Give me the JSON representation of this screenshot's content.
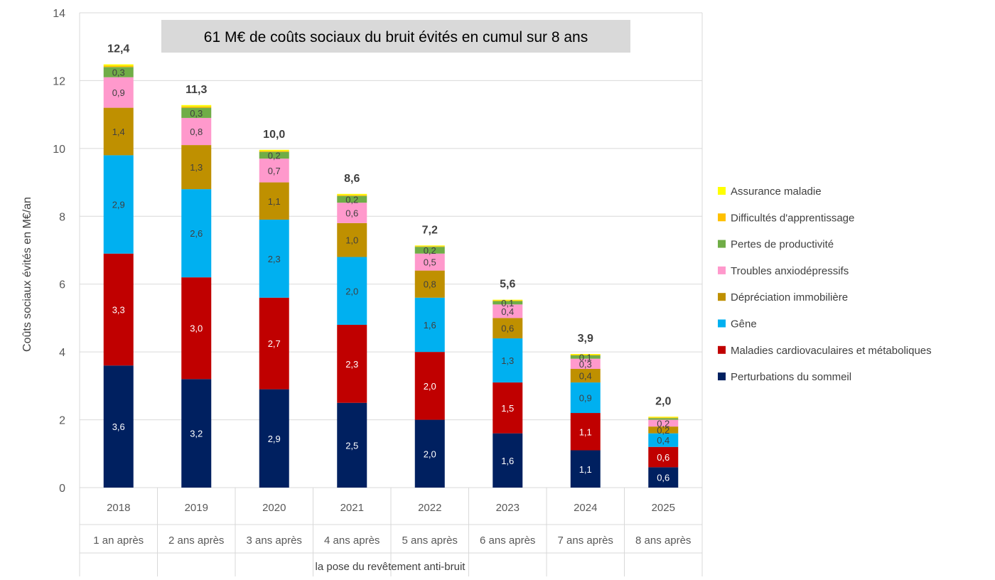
{
  "chart_data": {
    "type": "bar",
    "stacked": true,
    "title": "61 M€ de coûts sociaux du bruit évités en cumul sur 8 ans",
    "ylabel": "Coûts sociaux évités en M€/an",
    "xlabel": "la pose du revêtement anti-bruit",
    "ylim": [
      0,
      14
    ],
    "yticks": [
      0,
      2,
      4,
      6,
      8,
      10,
      12,
      14
    ],
    "grid": true,
    "legend_position": "right",
    "categories": [
      "2018",
      "2019",
      "2020",
      "2021",
      "2022",
      "2023",
      "2024",
      "2025"
    ],
    "subcategories": [
      "1 an après",
      "2 ans après",
      "3 ans après",
      "4 ans après",
      "5 ans après",
      "6 ans après",
      "7 ans après",
      "8 ans après"
    ],
    "totals": [
      "12,4",
      "11,3",
      "10,0",
      "8,6",
      "7,2",
      "5,6",
      "3,9",
      "2,0"
    ],
    "series": [
      {
        "name": "Perturbations du sommeil",
        "color": "#002060",
        "labelColor": "#ffffff",
        "values": [
          3.6,
          3.2,
          2.9,
          2.5,
          2.0,
          1.6,
          1.1,
          0.6
        ],
        "labels": [
          "3,6",
          "3,2",
          "2,9",
          "2,5",
          "2,0",
          "1,6",
          "1,1",
          "0,6"
        ]
      },
      {
        "name": "Maladies cardiovaculaires et métaboliques",
        "color": "#C00000",
        "labelColor": "#ffffff",
        "values": [
          3.3,
          3.0,
          2.7,
          2.3,
          2.0,
          1.5,
          1.1,
          0.6
        ],
        "labels": [
          "3,3",
          "3,0",
          "2,7",
          "2,3",
          "2,0",
          "1,5",
          "1,1",
          "0,6"
        ]
      },
      {
        "name": "Gêne",
        "color": "#00B0F0",
        "labelColor": "#404040",
        "values": [
          2.9,
          2.6,
          2.3,
          2.0,
          1.6,
          1.3,
          0.9,
          0.4
        ],
        "labels": [
          "2,9",
          "2,6",
          "2,3",
          "2,0",
          "1,6",
          "1,3",
          "0,9",
          "0,4"
        ]
      },
      {
        "name": "Dépréciation immobilière",
        "color": "#BF9000",
        "labelColor": "#404040",
        "values": [
          1.4,
          1.3,
          1.1,
          1.0,
          0.8,
          0.6,
          0.4,
          0.2
        ],
        "labels": [
          "1,4",
          "1,3",
          "1,1",
          "1,0",
          "0,8",
          "0,6",
          "0,4",
          "0,2"
        ]
      },
      {
        "name": "Troubles anxiodépressifs",
        "color": "#FF99CC",
        "labelColor": "#404040",
        "values": [
          0.9,
          0.8,
          0.7,
          0.6,
          0.5,
          0.4,
          0.3,
          0.2
        ],
        "labels": [
          "0,9",
          "0,8",
          "0,7",
          "0,6",
          "0,5",
          "0,4",
          "0,3",
          "0,2"
        ]
      },
      {
        "name": "Pertes de productivité",
        "color": "#70AD47",
        "labelColor": "#404040",
        "values": [
          0.3,
          0.3,
          0.2,
          0.2,
          0.2,
          0.1,
          0.1,
          0.05
        ],
        "labels": [
          "0,3",
          "0,3",
          "0,2",
          "0,2",
          "0,2",
          "0,1",
          "0,1",
          ""
        ]
      },
      {
        "name": "Difficultés d'apprentissage",
        "color": "#FFC000",
        "labelColor": "#404040",
        "values": [
          0.04,
          0.04,
          0.03,
          0.03,
          0.02,
          0.02,
          0.02,
          0.02
        ],
        "labels": [
          "",
          "",
          "",
          "",
          "",
          "",
          "",
          ""
        ]
      },
      {
        "name": "Assurance maladie",
        "color": "#FFFF00",
        "labelColor": "#404040",
        "values": [
          0.04,
          0.04,
          0.03,
          0.03,
          0.02,
          0.02,
          0.02,
          0.02
        ],
        "labels": [
          "",
          "",
          "",
          "",
          "",
          "",
          "",
          ""
        ]
      }
    ]
  }
}
